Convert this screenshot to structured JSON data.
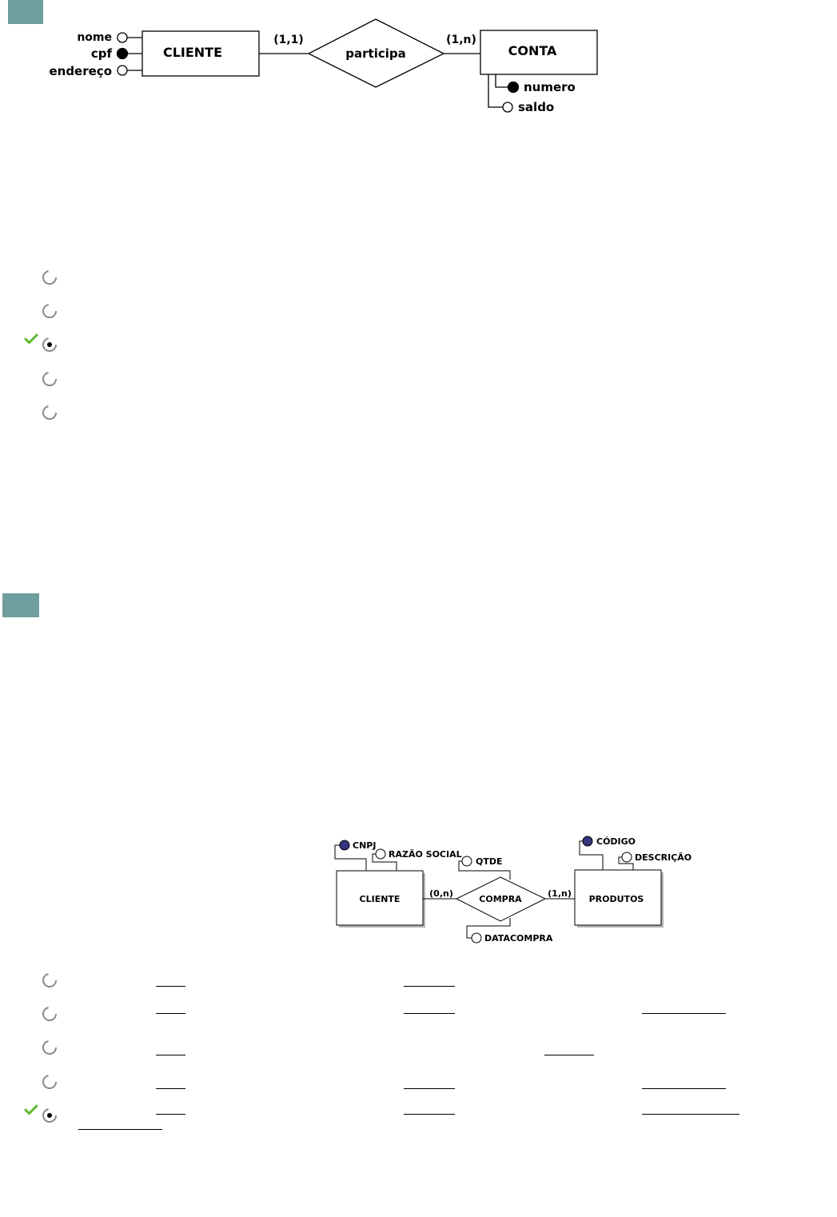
{
  "question1": {
    "diagram": {
      "entity_left": "CLIENTE",
      "entity_right": "CONTA",
      "relationship": "participa",
      "card_left": "(1,1)",
      "card_right": "(1,n)",
      "left_attributes": [
        {
          "label": "nome",
          "key": false
        },
        {
          "label": "cpf",
          "key": true
        },
        {
          "label": "endereço",
          "key": false
        }
      ],
      "right_attributes": [
        {
          "label": "numero",
          "key": true
        },
        {
          "label": "saldo",
          "key": false
        }
      ]
    },
    "options": [
      {
        "selected": false,
        "correct": false
      },
      {
        "selected": false,
        "correct": false
      },
      {
        "selected": true,
        "correct": true
      },
      {
        "selected": false,
        "correct": false
      },
      {
        "selected": false,
        "correct": false
      }
    ]
  },
  "question2": {
    "diagram": {
      "entity_left": "CLIENTE",
      "entity_right": "PRODUTOS",
      "relationship": "COMPRA",
      "card_left": "(0,n)",
      "card_right": "(1,n)",
      "left_attributes": [
        {
          "label": "CNPJ",
          "key": true
        },
        {
          "label": "RAZÃO SOCIAL",
          "key": false
        }
      ],
      "relationship_attributes": [
        {
          "label": "QTDE",
          "key": false
        },
        {
          "label": "DATACOMPRA",
          "key": false
        }
      ],
      "right_attributes": [
        {
          "label": "CÓDIGO",
          "key": true
        },
        {
          "label": "DESCRIÇÃO",
          "key": false
        }
      ]
    },
    "options": [
      {
        "selected": false,
        "correct": false
      },
      {
        "selected": false,
        "correct": false
      },
      {
        "selected": false,
        "correct": false
      },
      {
        "selected": false,
        "correct": false
      },
      {
        "selected": true,
        "correct": true
      }
    ]
  },
  "colors": {
    "badge": "#6f9e9e",
    "key_attr_q2": "#34347f",
    "check": "#5cb82e"
  }
}
